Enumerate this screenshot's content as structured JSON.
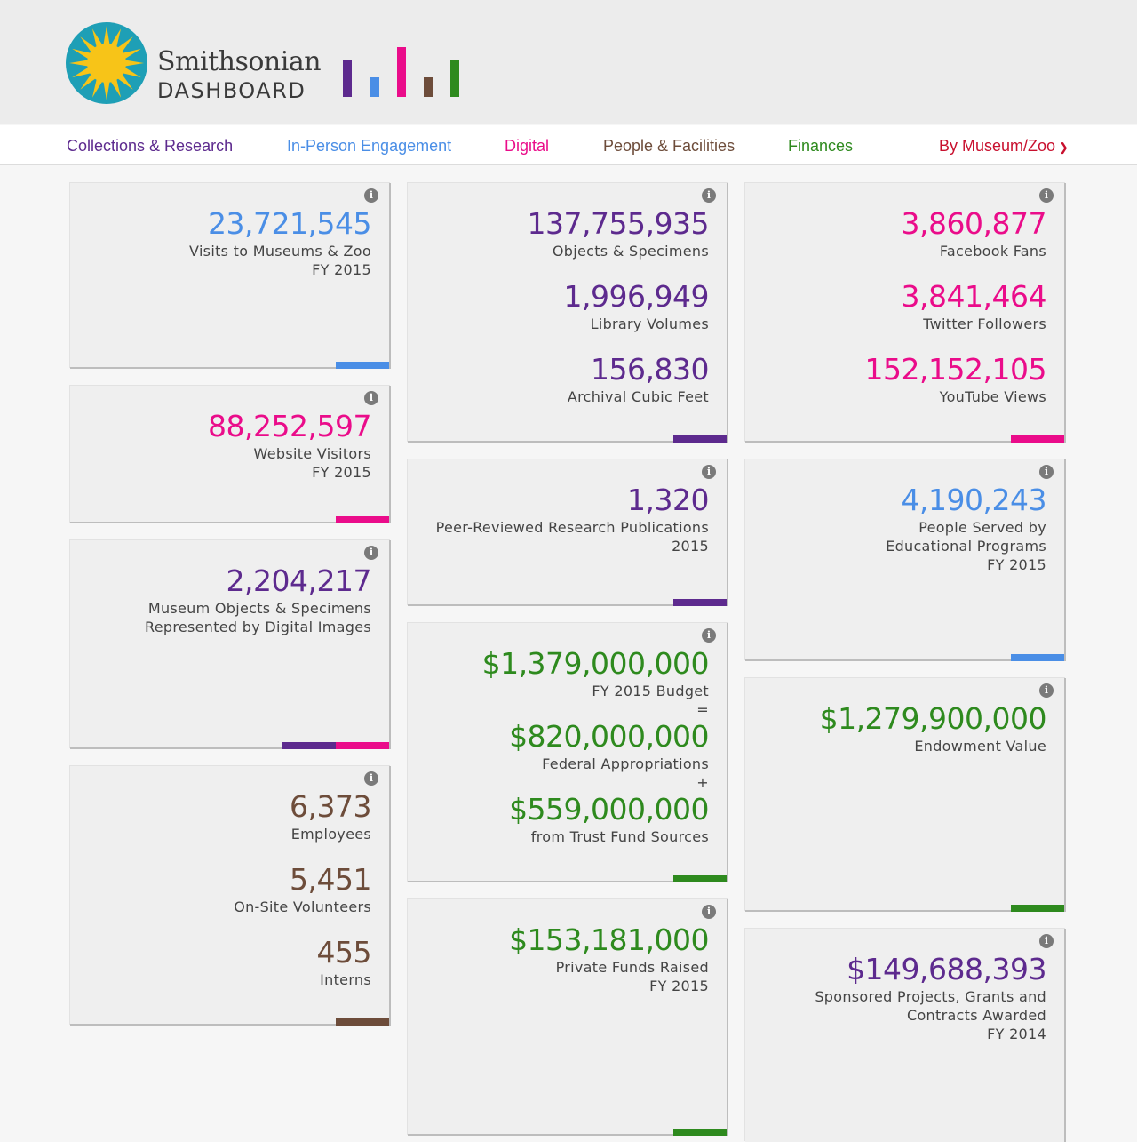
{
  "brand": {
    "name": "Smithsonian",
    "sub": "DASHBOARD"
  },
  "colors": {
    "purple": "#5d2a8e",
    "blue": "#4a8ee6",
    "magenta": "#ea0c8a",
    "brown": "#6d4c3a",
    "green": "#2e8a1e",
    "red": "#c8102e"
  },
  "nav": {
    "collections": "Collections & Research",
    "inperson": "In-Person Engagement",
    "digital": "Digital",
    "people": "People & Facilities",
    "finances": "Finances",
    "bymuseum": "By Museum/Zoo"
  },
  "info_glyph": "i",
  "cards": {
    "visits": {
      "value": "23,721,545",
      "label": "Visits to Museums & Zoo",
      "sub": "FY 2015"
    },
    "website": {
      "value": "88,252,597",
      "label": "Website Visitors",
      "sub": "FY 2015"
    },
    "digital_images": {
      "value": "2,204,217",
      "label": "Museum Objects & Specimens",
      "label2": "Represented by Digital Images"
    },
    "staff": [
      {
        "value": "6,373",
        "label": "Employees"
      },
      {
        "value": "5,451",
        "label": "On-Site Volunteers"
      },
      {
        "value": "455",
        "label": "Interns"
      }
    ],
    "collections": [
      {
        "value": "137,755,935",
        "label": "Objects & Specimens"
      },
      {
        "value": "1,996,949",
        "label": "Library Volumes"
      },
      {
        "value": "156,830",
        "label": "Archival Cubic Feet"
      }
    ],
    "publications": {
      "value": "1,320",
      "label": "Peer-Reviewed Research Publications",
      "sub": "2015"
    },
    "budget": {
      "total": "$1,379,000,000",
      "total_label": "FY 2015 Budget",
      "eq": "=",
      "federal": "$820,000,000",
      "federal_label": "Federal Appropriations",
      "plus": "+",
      "trust": "$559,000,000",
      "trust_label": "from Trust Fund Sources"
    },
    "private_funds": {
      "value": "$153,181,000",
      "label": "Private Funds Raised",
      "sub": "FY 2015"
    },
    "social": [
      {
        "value": "3,860,877",
        "label": "Facebook Fans"
      },
      {
        "value": "3,841,464",
        "label": "Twitter Followers"
      },
      {
        "value": "152,152,105",
        "label": "YouTube Views"
      }
    ],
    "education": {
      "value": "4,190,243",
      "label": "People Served by",
      "label2": "Educational Programs",
      "sub": "FY 2015"
    },
    "endowment": {
      "value": "$1,279,900,000",
      "label": "Endowment Value"
    },
    "sponsored": {
      "value": "$149,688,393",
      "label": "Sponsored Projects, Grants and",
      "label2": "Contracts Awarded",
      "sub": "FY 2014"
    }
  }
}
